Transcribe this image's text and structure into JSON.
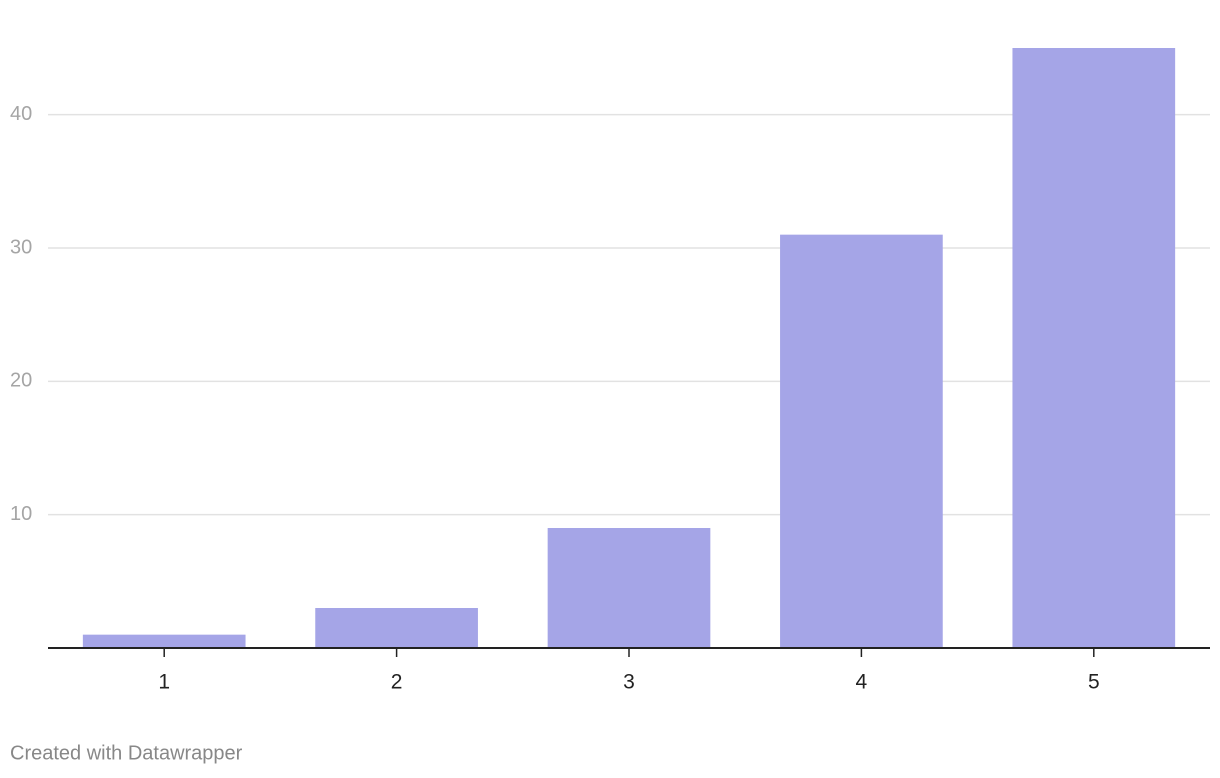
{
  "chart_data": {
    "type": "bar",
    "categories": [
      "1",
      "2",
      "3",
      "4",
      "5"
    ],
    "values": [
      1,
      3,
      9,
      31,
      45
    ],
    "color": "#a5a5e7",
    "ylim": [
      0,
      45
    ],
    "yticks": [
      10,
      20,
      30,
      40
    ],
    "grid": true,
    "credit": "Created with Datawrapper"
  }
}
